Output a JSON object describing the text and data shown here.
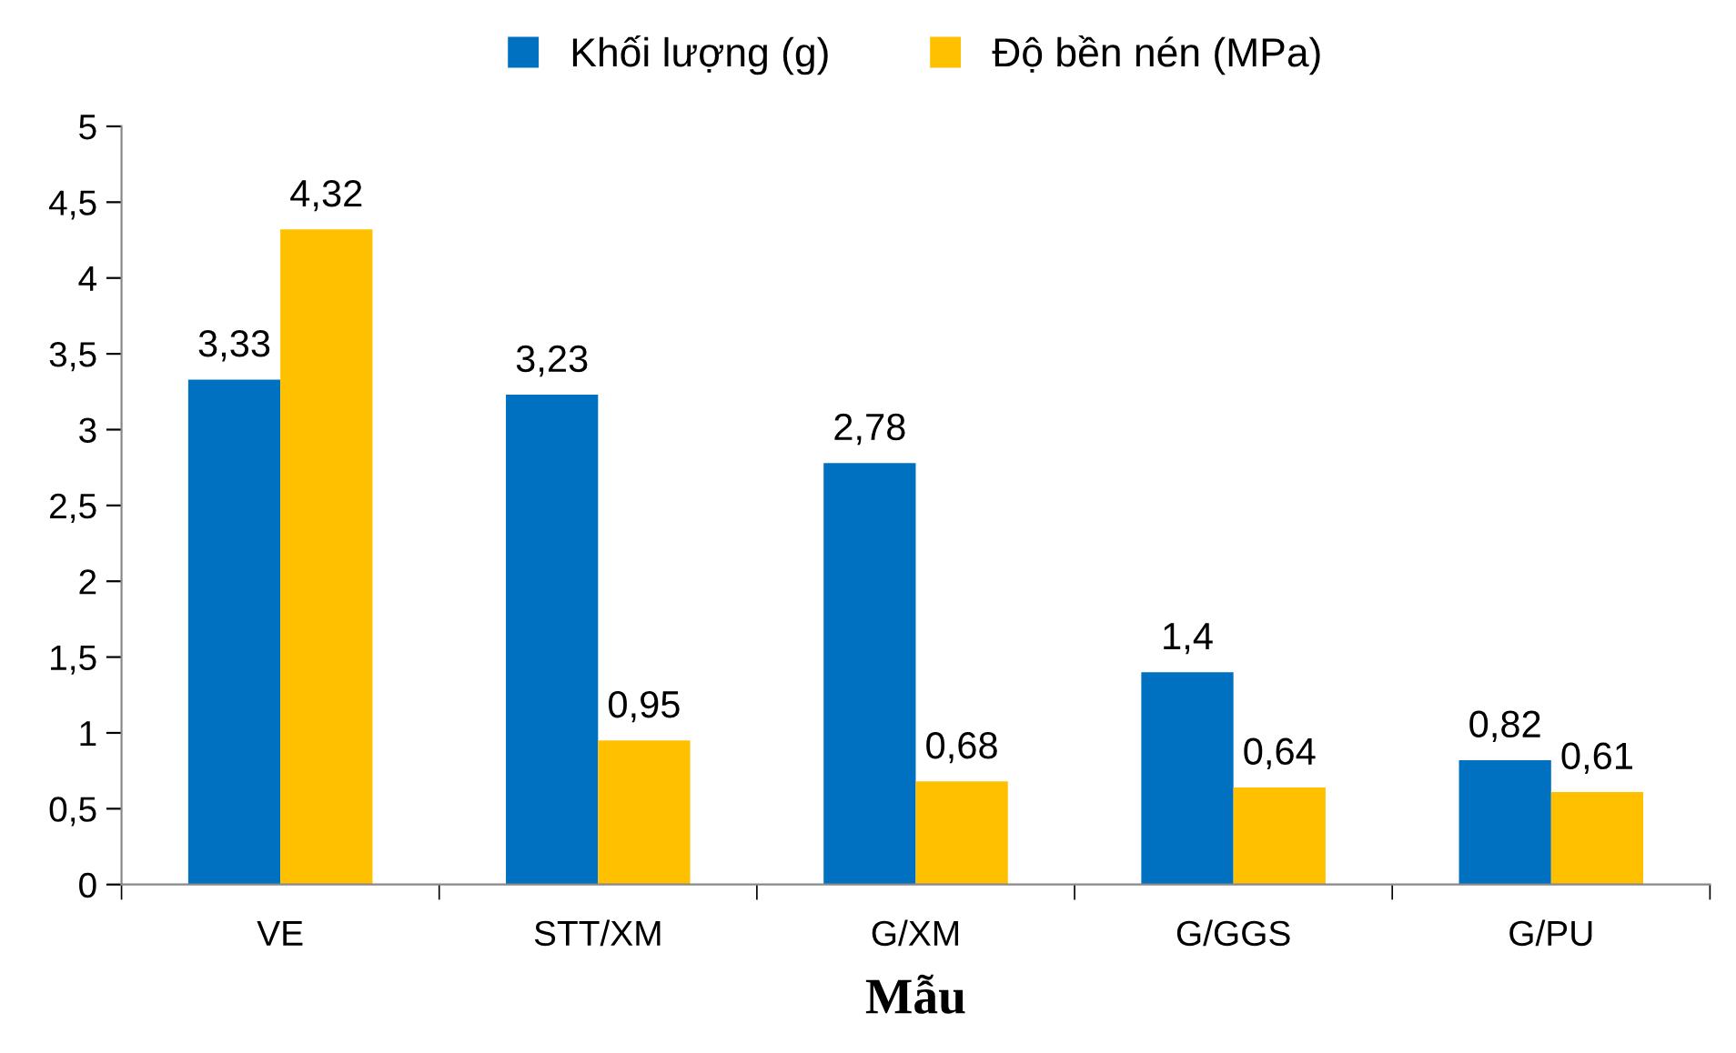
{
  "chart_data": {
    "type": "bar",
    "xlabel": "Mẫu",
    "categories": [
      "VE",
      "STT/XM",
      "G/XM",
      "G/GGS",
      "G/PU"
    ],
    "series": [
      {
        "name": "Khối lượng (g)",
        "color": "#0070c0",
        "values": [
          3.33,
          3.23,
          2.78,
          1.4,
          0.82
        ],
        "value_labels": [
          "3,33",
          "3,23",
          "2,78",
          "1,4",
          "0,82"
        ]
      },
      {
        "name": "Độ bền nén (MPa)",
        "color": "#ffc000",
        "values": [
          4.32,
          0.95,
          0.68,
          0.64,
          0.61
        ],
        "value_labels": [
          "4,32",
          "0,95",
          "0,68",
          "0,64",
          "0,61"
        ]
      }
    ],
    "ylim": [
      0,
      5
    ],
    "yticks": [
      0,
      {
        "value": 0.5,
        "label": "0,5"
      },
      1,
      {
        "value": 1.5,
        "label": "1,5"
      },
      2,
      {
        "value": 2.5,
        "label": "2,5"
      },
      3,
      {
        "value": 3.5,
        "label": "3,5"
      },
      4,
      {
        "value": 4.5,
        "label": "4,5"
      },
      5
    ],
    "grid": false,
    "legend": "top"
  }
}
